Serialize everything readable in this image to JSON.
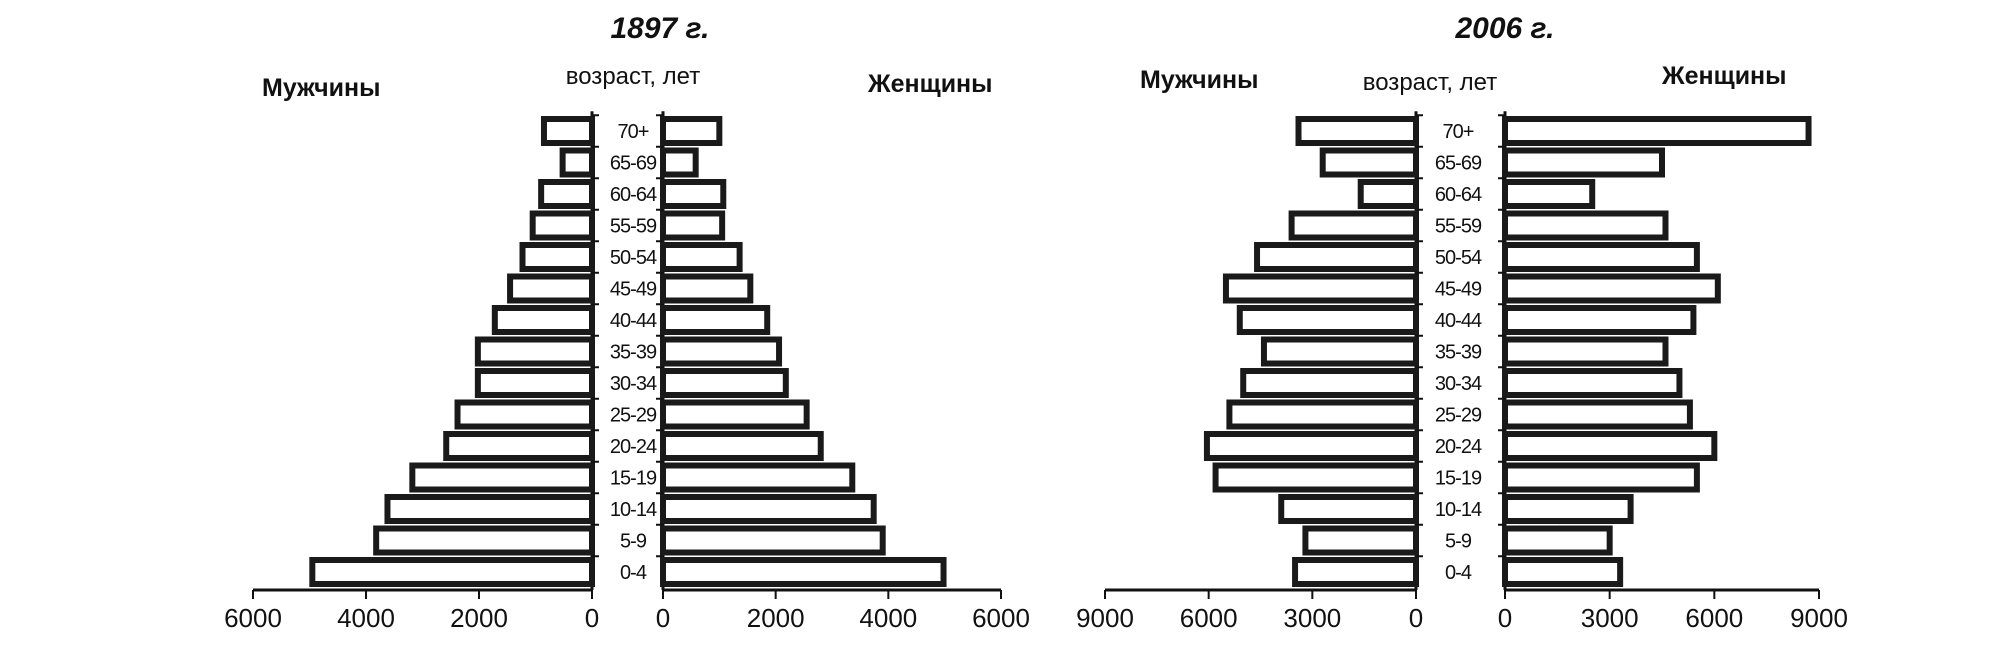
{
  "chart_data": [
    {
      "type": "bar",
      "orientation": "horizontal",
      "title": "1897 г.",
      "left_label": "Мужчины",
      "right_label": "Женщины",
      "age_caption": "возраст, лет",
      "categories": [
        "0-4",
        "5-9",
        "10-14",
        "15-19",
        "20-24",
        "25-29",
        "30-34",
        "35-39",
        "40-44",
        "45-49",
        "50-54",
        "55-59",
        "60-64",
        "65-69",
        "70+"
      ],
      "series": [
        {
          "name": "Мужчины",
          "side": "left",
          "values": [
            4950,
            3820,
            3620,
            3180,
            2580,
            2380,
            2020,
            2020,
            1720,
            1450,
            1230,
            1050,
            900,
            520,
            850
          ]
        },
        {
          "name": "Женщины",
          "side": "right",
          "values": [
            4980,
            3900,
            3740,
            3360,
            2800,
            2550,
            2180,
            2060,
            1850,
            1550,
            1360,
            1050,
            1070,
            580,
            1000
          ]
        }
      ],
      "xlim": [
        0,
        6000
      ],
      "ticks_left": [
        "6000",
        "4000",
        "2000",
        "0"
      ],
      "ticks_right": [
        "0",
        "2000",
        "4000",
        "6000"
      ]
    },
    {
      "type": "bar",
      "orientation": "horizontal",
      "title": "2006 г.",
      "left_label": "Мужчины",
      "right_label": "Женщины",
      "age_caption": "возраст, лет",
      "categories": [
        "0-4",
        "5-9",
        "10-14",
        "15-19",
        "20-24",
        "25-29",
        "30-34",
        "35-39",
        "40-44",
        "45-49",
        "50-54",
        "55-59",
        "60-64",
        "65-69",
        "70+"
      ],
      "series": [
        {
          "name": "Мужчины",
          "side": "left",
          "values": [
            3500,
            3200,
            3900,
            5800,
            6050,
            5400,
            5000,
            4400,
            5100,
            5500,
            4600,
            3600,
            1600,
            2700,
            3400
          ]
        },
        {
          "name": "Женщины",
          "side": "right",
          "values": [
            3300,
            3000,
            3600,
            5500,
            6000,
            5300,
            5000,
            4600,
            5400,
            6100,
            5500,
            4600,
            2500,
            4500,
            8700
          ]
        }
      ],
      "xlim": [
        0,
        9000
      ],
      "ticks_left": [
        "9000",
        "6000",
        "3000",
        "0"
      ],
      "ticks_right": [
        "0",
        "3000",
        "6000",
        "9000"
      ]
    }
  ]
}
